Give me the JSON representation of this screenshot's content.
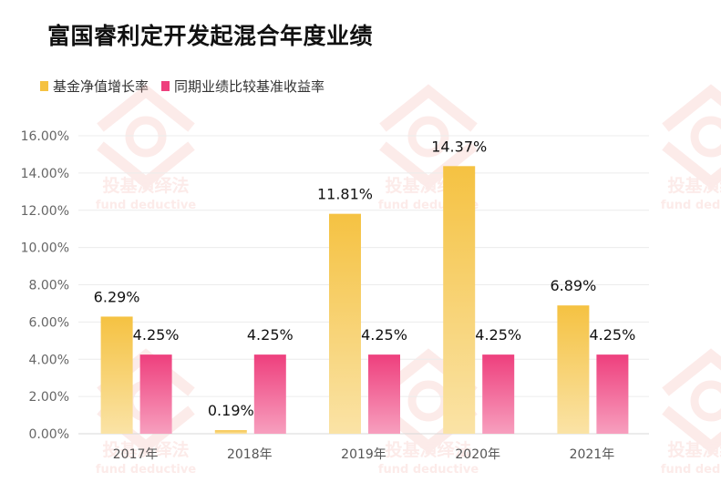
{
  "chart_data": {
    "type": "bar",
    "title": "富国睿利定开发起混合年度业绩",
    "categories": [
      "2017年",
      "2018年",
      "2019年",
      "2020年",
      "2021年"
    ],
    "series": [
      {
        "name": "基金净值增长率",
        "values": [
          6.29,
          0.19,
          11.81,
          14.37,
          6.89
        ],
        "labels": [
          "6.29%",
          "0.19%",
          "11.81%",
          "14.37%",
          "6.89%"
        ],
        "color_top": "#f5c242",
        "color_bottom": "#fae3a6"
      },
      {
        "name": "同期业绩比较基准收益率",
        "values": [
          4.25,
          4.25,
          4.25,
          4.25,
          4.25
        ],
        "labels": [
          "4.25%",
          "4.25%",
          "4.25%",
          "4.25%",
          "4.25%"
        ],
        "color_top": "#ee3f7d",
        "color_bottom": "#f79fbe"
      }
    ],
    "ylim": [
      0,
      16
    ],
    "yticks": [
      "0.00%",
      "2.00%",
      "4.00%",
      "6.00%",
      "8.00%",
      "10.00%",
      "12.00%",
      "14.00%",
      "16.00%"
    ],
    "xlabel": "",
    "ylabel": "",
    "grid": true,
    "legend_position": "top-left"
  },
  "watermark": {
    "text": "投基演绎法",
    "subtext": "fund deductive",
    "color": "#f3a6a0"
  }
}
